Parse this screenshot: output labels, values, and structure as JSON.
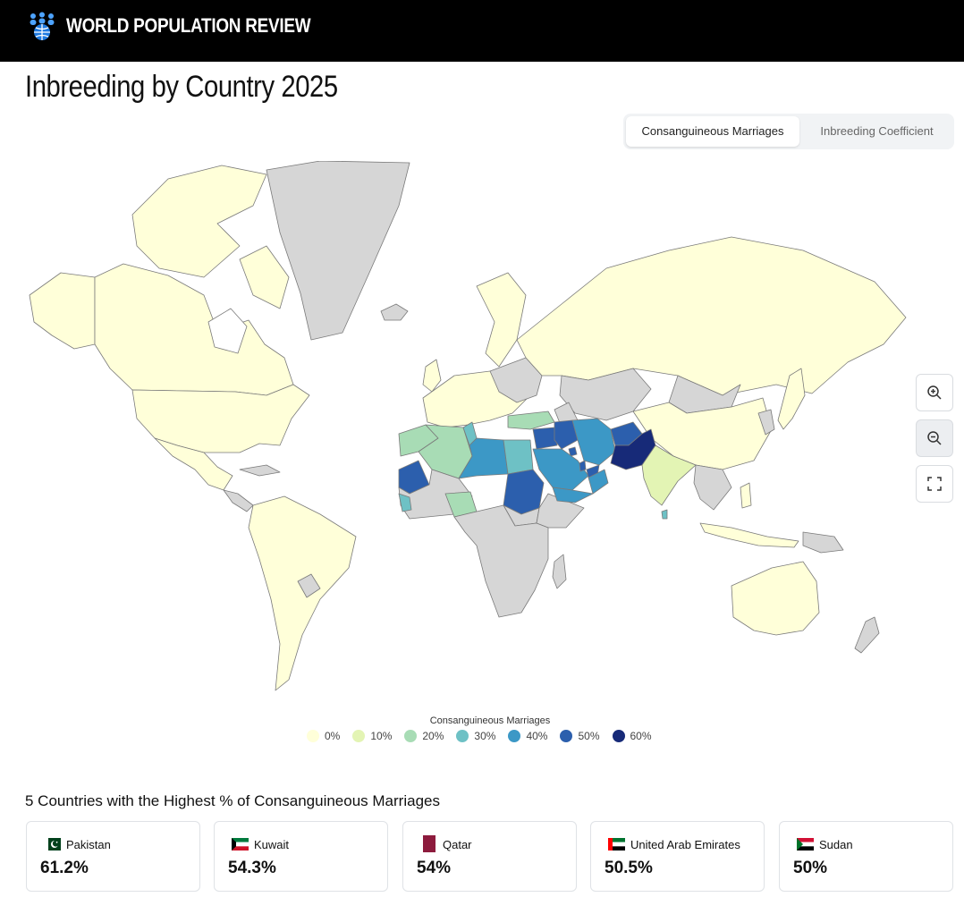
{
  "header": {
    "brand_name": "WORLD POPULATION REVIEW",
    "logo_icon": "people-globe-icon"
  },
  "page": {
    "title": "Inbreeding by Country 2025"
  },
  "toggle": {
    "options": [
      "Consanguineous Marriages",
      "Inbreeding Coefficient"
    ],
    "selected": "Consanguineous Marriages"
  },
  "map_controls": {
    "zoom_in_icon": "zoom-in-icon",
    "zoom_out_icon": "zoom-out-icon",
    "fullscreen_icon": "fullscreen-icon"
  },
  "legend": {
    "title": "Consanguineous Marriages",
    "items": [
      {
        "label": "0%",
        "color": "#ffffd9"
      },
      {
        "label": "10%",
        "color": "#e3f4b4"
      },
      {
        "label": "20%",
        "color": "#a8dcb5"
      },
      {
        "label": "30%",
        "color": "#6ec1c5"
      },
      {
        "label": "40%",
        "color": "#3c98c6"
      },
      {
        "label": "50%",
        "color": "#2c5fad"
      },
      {
        "label": "60%",
        "color": "#172a78"
      }
    ]
  },
  "map": {
    "no_data_color": "#d6d6d6",
    "border_color": "#7a7a7a"
  },
  "top5": {
    "title": "5 Countries with the Highest % of Consanguineous Marriages",
    "cards": [
      {
        "country": "Pakistan",
        "value": "61.2%",
        "flag_icon": "pakistan-flag-icon"
      },
      {
        "country": "Kuwait",
        "value": "54.3%",
        "flag_icon": "kuwait-flag-icon"
      },
      {
        "country": "Qatar",
        "value": "54%",
        "flag_icon": "qatar-flag-icon"
      },
      {
        "country": "United Arab Emirates",
        "value": "50.5%",
        "flag_icon": "uae-flag-icon"
      },
      {
        "country": "Sudan",
        "value": "50%",
        "flag_icon": "sudan-flag-icon"
      }
    ]
  }
}
